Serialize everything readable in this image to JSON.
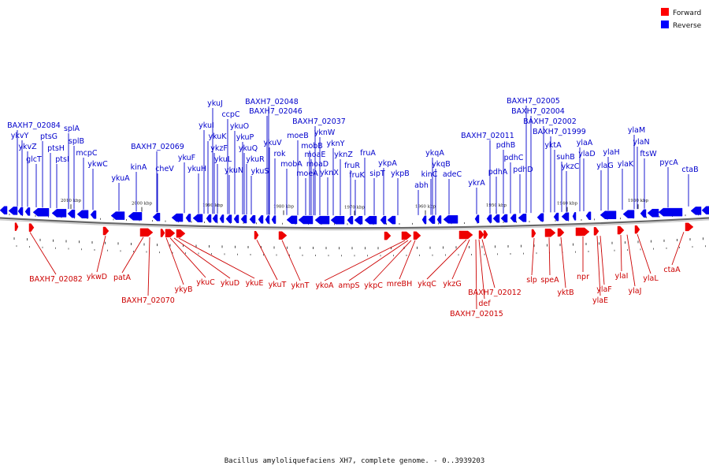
{
  "caption": "Bacillus amyloliquefaciens XH7, complete genome. - 0..3939203",
  "legend": [
    {
      "label": "Forward",
      "color": "#ff0000"
    },
    {
      "label": "Reverse",
      "color": "#0000ff"
    }
  ],
  "colors": {
    "forward": "#ee0000",
    "reverse": "#0000ee",
    "forward_label": "#cc0000",
    "reverse_label": "#0000cc",
    "backbone": "#888888"
  },
  "ticks": [
    "2010 kbp",
    "2000 kbp",
    "1990 kbp",
    "1980 kbp",
    "1970 kbp",
    "1960 kbp",
    "1950 kbp",
    "1940 kbp",
    "1930 kbp"
  ],
  "reverse_genes": [
    {
      "name": "BAXH7_02084"
    },
    {
      "name": "ykvY"
    },
    {
      "name": "ykvZ"
    },
    {
      "name": "glcT"
    },
    {
      "name": "ptsG"
    },
    {
      "name": "ptsH"
    },
    {
      "name": "ptsI"
    },
    {
      "name": "splA"
    },
    {
      "name": "splB"
    },
    {
      "name": "mcpC"
    },
    {
      "name": "ykwC"
    },
    {
      "name": "ykuA"
    },
    {
      "name": "kinA"
    },
    {
      "name": "BAXH7_02069"
    },
    {
      "name": "cheV"
    },
    {
      "name": "ykuF"
    },
    {
      "name": "ykuH"
    },
    {
      "name": "ykuI"
    },
    {
      "name": "ykuJ"
    },
    {
      "name": "ykuK"
    },
    {
      "name": "ccpC"
    },
    {
      "name": "ykzF"
    },
    {
      "name": "ykuL"
    },
    {
      "name": "ykuO"
    },
    {
      "name": "ykuN"
    },
    {
      "name": "ykuP"
    },
    {
      "name": "ykuQ"
    },
    {
      "name": "ykuR"
    },
    {
      "name": "ykuS"
    },
    {
      "name": "BAXH7_02048"
    },
    {
      "name": "BAXH7_02046"
    },
    {
      "name": "ykuV"
    },
    {
      "name": "rok"
    },
    {
      "name": "mobA"
    },
    {
      "name": "moeB"
    },
    {
      "name": "moeA"
    },
    {
      "name": "mobB"
    },
    {
      "name": "moaE"
    },
    {
      "name": "moaD"
    },
    {
      "name": "BAXH7_02037"
    },
    {
      "name": "yknW"
    },
    {
      "name": "yknX"
    },
    {
      "name": "yknY"
    },
    {
      "name": "yknZ"
    },
    {
      "name": "fruR"
    },
    {
      "name": "fruK"
    },
    {
      "name": "fruA"
    },
    {
      "name": "sipT"
    },
    {
      "name": "ykpA"
    },
    {
      "name": "ykpB"
    },
    {
      "name": "abh"
    },
    {
      "name": "kinC"
    },
    {
      "name": "ykqA"
    },
    {
      "name": "ykqB"
    },
    {
      "name": "adeC"
    },
    {
      "name": "ykrA"
    },
    {
      "name": "BAXH7_02011"
    },
    {
      "name": "pdhA"
    },
    {
      "name": "pdhB"
    },
    {
      "name": "pdhC"
    },
    {
      "name": "pdhD"
    },
    {
      "name": "BAXH7_02005"
    },
    {
      "name": "BAXH7_02004"
    },
    {
      "name": "BAXH7_02002"
    },
    {
      "name": "BAXH7_01999"
    },
    {
      "name": "yktA"
    },
    {
      "name": "suhB"
    },
    {
      "name": "ykzC"
    },
    {
      "name": "ylaA"
    },
    {
      "name": "ylaD"
    },
    {
      "name": "ylaG"
    },
    {
      "name": "ylaH"
    },
    {
      "name": "ylaK"
    },
    {
      "name": "ylaM"
    },
    {
      "name": "ylaN"
    },
    {
      "name": "ftsW"
    },
    {
      "name": "pycA"
    },
    {
      "name": "ctaB"
    }
  ],
  "forward_genes": [
    {
      "name": "BAXH7_02082"
    },
    {
      "name": "ykwD"
    },
    {
      "name": "patA"
    },
    {
      "name": "BAXH7_02070"
    },
    {
      "name": "ykyB"
    },
    {
      "name": "ykuC"
    },
    {
      "name": "ykuD"
    },
    {
      "name": "ykuE"
    },
    {
      "name": "ykuT"
    },
    {
      "name": "yknT"
    },
    {
      "name": "ykoA"
    },
    {
      "name": "ampS"
    },
    {
      "name": "ykpC"
    },
    {
      "name": "mreBH"
    },
    {
      "name": "ykqC"
    },
    {
      "name": "ykzG"
    },
    {
      "name": "BAXH7_02012"
    },
    {
      "name": "def"
    },
    {
      "name": "BAXH7_02015"
    },
    {
      "name": "slp"
    },
    {
      "name": "speA"
    },
    {
      "name": "yktB"
    },
    {
      "name": "npr"
    },
    {
      "name": "ylaF"
    },
    {
      "name": "ylaE"
    },
    {
      "name": "ylaI"
    },
    {
      "name": "ylaJ"
    },
    {
      "name": "ylaL"
    },
    {
      "name": "ctaA"
    }
  ]
}
